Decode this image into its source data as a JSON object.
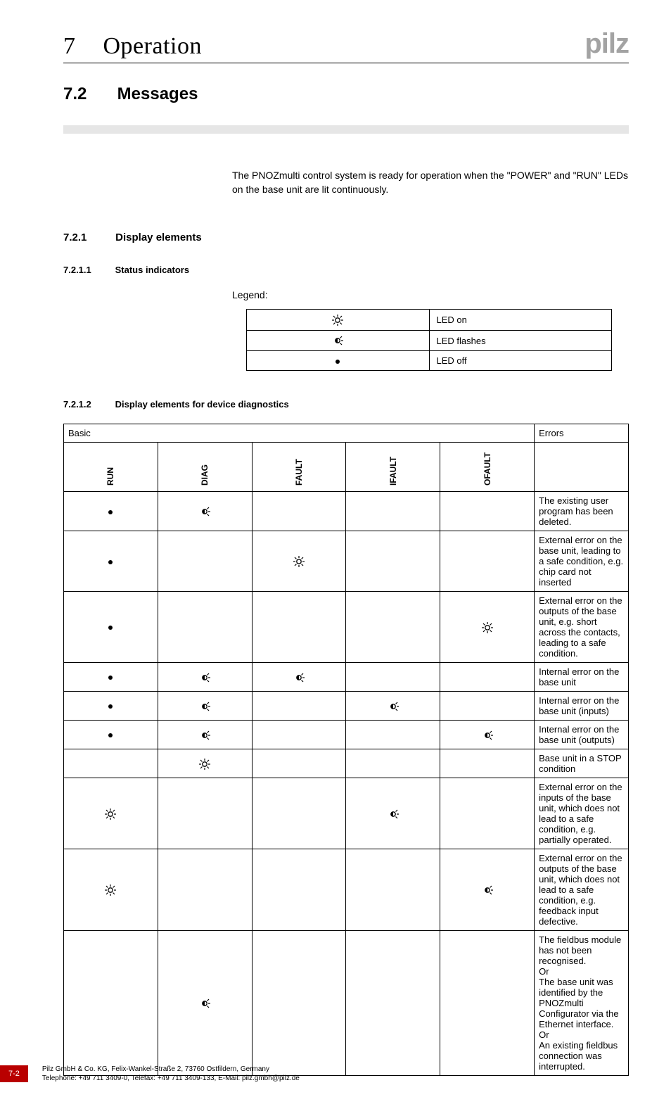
{
  "theme": {
    "text_color": "#000000",
    "background": "#ffffff",
    "grey_bar": "#e6e6e6",
    "logo_color": "#a3a3a3",
    "badge_bg": "#b90000",
    "badge_text": "#ffffff",
    "border_color": "#000000",
    "body_font_size": 14,
    "chapter_font_size": 34,
    "section_font_size": 24
  },
  "header": {
    "chapter_number": "7",
    "chapter_title": "Operation",
    "logo_text": "pilz"
  },
  "section": {
    "number": "7.2",
    "title": "Messages"
  },
  "intro_text": "The PNOZmulti control system is ready for operation when the \"POWER\" and \"RUN\" LEDs on the base unit are lit continuously.",
  "subsection": {
    "number": "7.2.1",
    "title": "Display elements"
  },
  "status_indicators": {
    "number": "7.2.1.1",
    "title": "Status indicators",
    "legend_label": "Legend:",
    "rows": [
      {
        "icon": "on",
        "label": "LED on"
      },
      {
        "icon": "flash",
        "label": "LED flashes"
      },
      {
        "icon": "off",
        "label": "LED off"
      }
    ]
  },
  "diagnostics": {
    "number": "7.2.1.2",
    "title": "Display elements for device diagnostics",
    "group_headers": {
      "basic": "Basic",
      "errors": "Errors"
    },
    "columns": [
      "RUN",
      "DIAG",
      "FAULT",
      "IFAULT",
      "OFAULT"
    ],
    "rows": [
      {
        "leds": [
          "off",
          "flash",
          "",
          "",
          ""
        ],
        "desc": "The existing user program has been deleted."
      },
      {
        "leds": [
          "off",
          "",
          "on",
          "",
          ""
        ],
        "desc": "External error on the base unit, leading to a safe condition, e.g. chip card not inserted"
      },
      {
        "leds": [
          "off",
          "",
          "",
          "",
          "on"
        ],
        "desc": "External error on the outputs of the base unit, e.g. short across the contacts, leading to a safe condition."
      },
      {
        "leds": [
          "off",
          "flash",
          "flash",
          "",
          ""
        ],
        "desc": "Internal error on the base unit"
      },
      {
        "leds": [
          "off",
          "flash",
          "",
          "flash",
          ""
        ],
        "desc": "Internal error on the base unit (inputs)"
      },
      {
        "leds": [
          "off",
          "flash",
          "",
          "",
          "flash"
        ],
        "desc": "Internal error on the base unit (outputs)"
      },
      {
        "leds": [
          "",
          "on",
          "",
          "",
          ""
        ],
        "desc": "Base unit in a STOP condition"
      },
      {
        "leds": [
          "on",
          "",
          "",
          "flash",
          ""
        ],
        "desc": "External error on the inputs of the base unit, which does not lead to a safe condition, e.g. partially operated."
      },
      {
        "leds": [
          "on",
          "",
          "",
          "",
          "flash"
        ],
        "desc": "External error on the outputs of the base unit, which does not lead to a safe condition, e.g. feedback input defective."
      },
      {
        "leds": [
          "",
          "flash",
          "",
          "",
          ""
        ],
        "desc": "The fieldbus module has not been recognised.\nOr\nThe base unit was identified by the PNOZmulti Configurator via the Ethernet interface.\nOr\nAn existing fieldbus connection was interrupted."
      }
    ]
  },
  "footer": {
    "page_number": "7-2",
    "line1": "Pilz GmbH & Co. KG, Felix-Wankel-Straße 2, 73760 Ostfildern, Germany",
    "line2": "Telephone: +49 711 3409-0, Telefax: +49 711 3409-133, E-Mail: pilz.gmbh@pilz.de"
  }
}
